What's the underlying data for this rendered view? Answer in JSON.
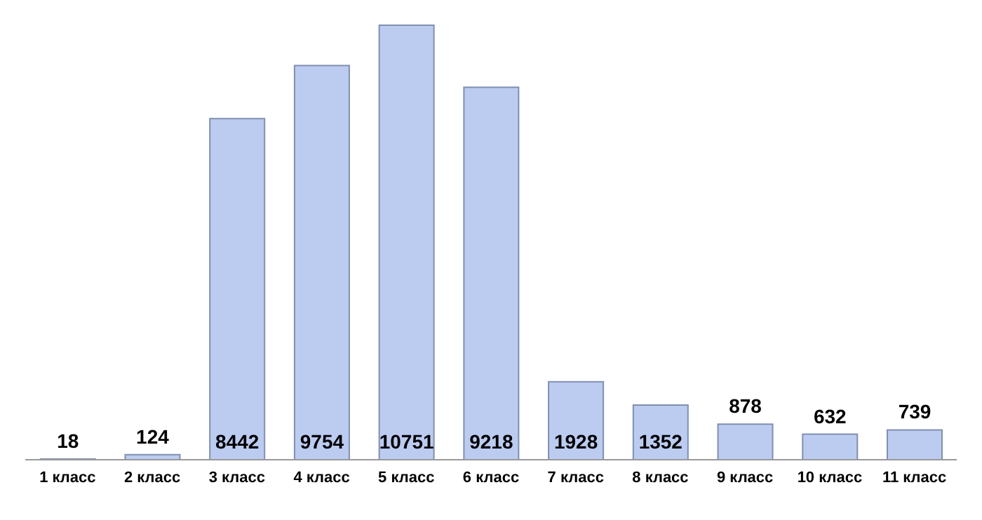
{
  "chart_data": {
    "type": "bar",
    "categories": [
      "1 класс",
      "2 класс",
      "3 класс",
      "4 класс",
      "5 класс",
      "6 класс",
      "7 класс",
      "8 класс",
      "9 класс",
      "10 класс",
      "11 класс"
    ],
    "values": [
      18,
      124,
      8442,
      9754,
      10751,
      9218,
      1928,
      1352,
      878,
      632,
      739
    ],
    "color": "#bccbf0",
    "data_labels": true,
    "grid": false,
    "legend": false
  }
}
